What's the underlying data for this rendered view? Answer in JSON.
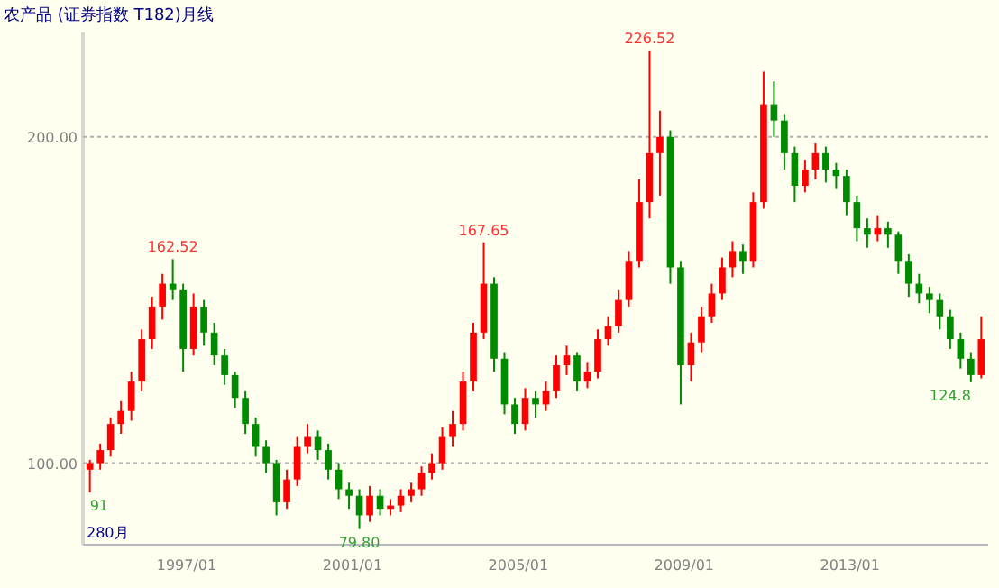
{
  "chart_data": {
    "type": "candlestick",
    "title": "农产品 (证券指数 T182)月线",
    "x": [
      "1994-09",
      "1994-12",
      "1995-03",
      "1995-06",
      "1995-09",
      "1995-12",
      "1996-03",
      "1996-06",
      "1996-09",
      "1996-12",
      "1997-03",
      "1997-06",
      "1997-09",
      "1997-12",
      "1998-03",
      "1998-06",
      "1998-09",
      "1998-12",
      "1999-03",
      "1999-06",
      "1999-09",
      "1999-12",
      "2000-03",
      "2000-06",
      "2000-09",
      "2000-12",
      "2001-03",
      "2001-06",
      "2001-09",
      "2001-12",
      "2002-03",
      "2002-06",
      "2002-09",
      "2002-12",
      "2003-03",
      "2003-06",
      "2003-09",
      "2003-12",
      "2004-03",
      "2004-06",
      "2004-09",
      "2004-12",
      "2005-03",
      "2005-06",
      "2005-09",
      "2005-12",
      "2006-03",
      "2006-06",
      "2006-09",
      "2006-12",
      "2007-03",
      "2007-06",
      "2007-09",
      "2007-12",
      "2008-03",
      "2008-06",
      "2008-09",
      "2008-12",
      "2009-03",
      "2009-06",
      "2009-09",
      "2009-12",
      "2010-03",
      "2010-06",
      "2010-09",
      "2010-12",
      "2011-03",
      "2011-06",
      "2011-09",
      "2011-12",
      "2012-03",
      "2012-06",
      "2012-09",
      "2012-12",
      "2013-03",
      "2013-06",
      "2013-09",
      "2013-12",
      "2014-03",
      "2014-06",
      "2014-09",
      "2014-12",
      "2015-03",
      "2015-06",
      "2015-09",
      "2015-12",
      "2016-03"
    ],
    "ohlc": [
      [
        98,
        101,
        91,
        100
      ],
      [
        100,
        106,
        98,
        104
      ],
      [
        104,
        114,
        102,
        112
      ],
      [
        112,
        119,
        109,
        116
      ],
      [
        116,
        128,
        113,
        125
      ],
      [
        125,
        141,
        122,
        138
      ],
      [
        138,
        151,
        135,
        148
      ],
      [
        148,
        158,
        144,
        155
      ],
      [
        155,
        162.52,
        150,
        153
      ],
      [
        153,
        155,
        128,
        135
      ],
      [
        135,
        152,
        133,
        148
      ],
      [
        148,
        150,
        136,
        140
      ],
      [
        140,
        143,
        130,
        133
      ],
      [
        133,
        135,
        124,
        127
      ],
      [
        127,
        128,
        117,
        120
      ],
      [
        120,
        122,
        109,
        112
      ],
      [
        112,
        114,
        102,
        105
      ],
      [
        105,
        107,
        97,
        100
      ],
      [
        100,
        101,
        84,
        88
      ],
      [
        88,
        98,
        86,
        95
      ],
      [
        95,
        108,
        93,
        105
      ],
      [
        105,
        112,
        103,
        108
      ],
      [
        108,
        110,
        101,
        104
      ],
      [
        104,
        106,
        95,
        98
      ],
      [
        98,
        100,
        89,
        92
      ],
      [
        92,
        94,
        86,
        90
      ],
      [
        90,
        92,
        79.8,
        84
      ],
      [
        84,
        93,
        82,
        90
      ],
      [
        90,
        92,
        84,
        86
      ],
      [
        86,
        89,
        84,
        87
      ],
      [
        87,
        92,
        85,
        90
      ],
      [
        90,
        94,
        88,
        92
      ],
      [
        92,
        99,
        90,
        97
      ],
      [
        97,
        103,
        95,
        100
      ],
      [
        100,
        111,
        98,
        108
      ],
      [
        108,
        116,
        105,
        112
      ],
      [
        112,
        128,
        110,
        125
      ],
      [
        125,
        143,
        122,
        140
      ],
      [
        140,
        167.65,
        138,
        155
      ],
      [
        155,
        157,
        128,
        132
      ],
      [
        132,
        134,
        115,
        118
      ],
      [
        118,
        120,
        109,
        112
      ],
      [
        112,
        123,
        110,
        120
      ],
      [
        120,
        122,
        114,
        118
      ],
      [
        118,
        125,
        116,
        122
      ],
      [
        122,
        133,
        120,
        130
      ],
      [
        130,
        136,
        127,
        133
      ],
      [
        133,
        134,
        122,
        125
      ],
      [
        125,
        131,
        123,
        128
      ],
      [
        128,
        141,
        126,
        138
      ],
      [
        138,
        145,
        136,
        142
      ],
      [
        142,
        153,
        140,
        150
      ],
      [
        150,
        165,
        148,
        162
      ],
      [
        162,
        187,
        160,
        180
      ],
      [
        180,
        226.52,
        175,
        195
      ],
      [
        195,
        208,
        182,
        200
      ],
      [
        200,
        202,
        155,
        160
      ],
      [
        160,
        162,
        118,
        130
      ],
      [
        130,
        140,
        125,
        137
      ],
      [
        137,
        148,
        134,
        145
      ],
      [
        145,
        155,
        143,
        152
      ],
      [
        152,
        163,
        150,
        160
      ],
      [
        160,
        168,
        157,
        165
      ],
      [
        165,
        167,
        158,
        162
      ],
      [
        162,
        183,
        160,
        180
      ],
      [
        180,
        220,
        178,
        210
      ],
      [
        210,
        217,
        200,
        205
      ],
      [
        205,
        207,
        190,
        195
      ],
      [
        195,
        197,
        180,
        185
      ],
      [
        185,
        193,
        183,
        190
      ],
      [
        190,
        198,
        187,
        195
      ],
      [
        195,
        197,
        186,
        190
      ],
      [
        190,
        192,
        184,
        188
      ],
      [
        188,
        190,
        176,
        180
      ],
      [
        180,
        182,
        168,
        172
      ],
      [
        172,
        175,
        166,
        170
      ],
      [
        170,
        176,
        168,
        172
      ],
      [
        172,
        174,
        166,
        170
      ],
      [
        170,
        171,
        158,
        162
      ],
      [
        162,
        164,
        151,
        155
      ],
      [
        155,
        158,
        149,
        152
      ],
      [
        152,
        154,
        146,
        150
      ],
      [
        150,
        152,
        141,
        145
      ],
      [
        145,
        147,
        135,
        138
      ],
      [
        138,
        140,
        129,
        132
      ],
      [
        132,
        134,
        124.8,
        127
      ],
      [
        127,
        145,
        126,
        138
      ]
    ],
    "xlim": [
      "1994-07",
      "2016-05"
    ],
    "xticks": [
      {
        "value": "1997-01",
        "label": "1997/01"
      },
      {
        "value": "2001-01",
        "label": "2001/01"
      },
      {
        "value": "2005-01",
        "label": "2005/01"
      },
      {
        "value": "2009-01",
        "label": "2009/01"
      },
      {
        "value": "2013-01",
        "label": "2013/01"
      }
    ],
    "ylim": [
      75,
      232
    ],
    "yticks": [
      {
        "value": 100,
        "label": "100.00"
      },
      {
        "value": 200,
        "label": "200.00"
      }
    ],
    "grid": "y",
    "annotations": [
      {
        "text": "162.52",
        "x": "1996-09",
        "y": 162.52
      },
      {
        "text": "167.65",
        "x": "2004-03",
        "y": 167.65
      },
      {
        "text": "226.52",
        "x": "2008-03",
        "y": 226.52
      },
      {
        "text": "79.80",
        "x": "2001-03",
        "y": 79.8
      },
      {
        "text": "124.8",
        "x": "2015-12",
        "y": 124.8
      },
      {
        "text": "91",
        "x": "1994-09",
        "y": 91
      },
      "280月"
    ]
  }
}
